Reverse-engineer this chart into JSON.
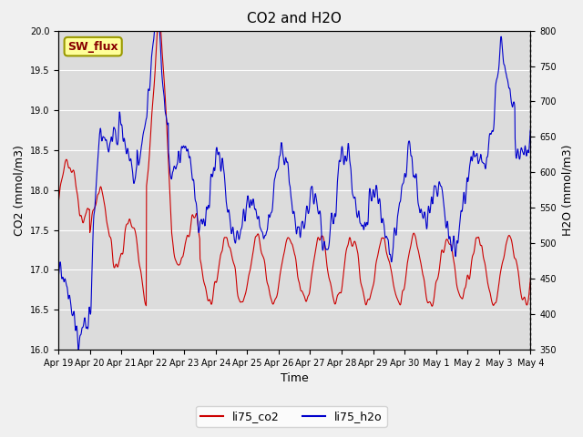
{
  "title": "CO2 and H2O",
  "xlabel": "Time",
  "ylabel_left": "CO2 (mmol/m3)",
  "ylabel_right": "H2O (mmol/m3)",
  "co2_color": "#cc0000",
  "h2o_color": "#0000cc",
  "co2_label": "li75_co2",
  "h2o_label": "li75_h2o",
  "ylim_co2": [
    16.0,
    20.0
  ],
  "ylim_h2o": [
    350,
    800
  ],
  "yticks_co2": [
    16.0,
    16.5,
    17.0,
    17.5,
    18.0,
    18.5,
    19.0,
    19.5,
    20.0
  ],
  "yticks_h2o": [
    350,
    400,
    450,
    500,
    550,
    600,
    650,
    700,
    750,
    800
  ],
  "xtick_labels": [
    "Apr 19",
    "Apr 20",
    "Apr 21",
    "Apr 22",
    "Apr 23",
    "Apr 24",
    "Apr 25",
    "Apr 26",
    "Apr 27",
    "Apr 28",
    "Apr 29",
    "Apr 30",
    "May 1",
    "May 2",
    "May 3",
    "May 4"
  ],
  "fig_bg_color": "#f0f0f0",
  "ax_bg_color": "#dcdcdc",
  "grid_color": "#ffffff",
  "annotation_text": "SW_flux",
  "annotation_bg": "#ffff99",
  "annotation_border": "#999900",
  "annotation_text_color": "#880000"
}
